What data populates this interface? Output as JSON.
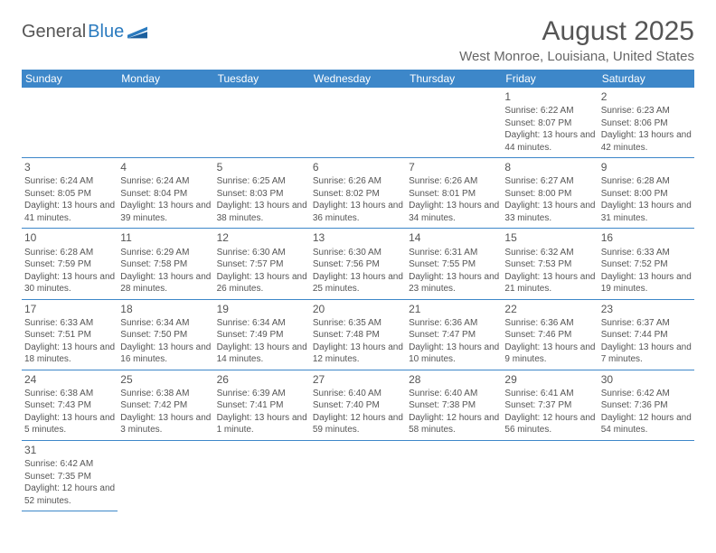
{
  "brand": {
    "part1": "General",
    "part2": "Blue"
  },
  "title": "August 2025",
  "location": "West Monroe, Louisiana, United States",
  "colors": {
    "header_bg": "#3d87c9",
    "header_fg": "#ffffff",
    "rule": "#3d87c9",
    "text": "#555555",
    "brand_accent": "#2b7bbf"
  },
  "weekdays": [
    "Sunday",
    "Monday",
    "Tuesday",
    "Wednesday",
    "Thursday",
    "Friday",
    "Saturday"
  ],
  "first_weekday_index": 5,
  "days": [
    {
      "n": 1,
      "sr": "6:22 AM",
      "ss": "8:07 PM",
      "dl": "13 hours and 44 minutes."
    },
    {
      "n": 2,
      "sr": "6:23 AM",
      "ss": "8:06 PM",
      "dl": "13 hours and 42 minutes."
    },
    {
      "n": 3,
      "sr": "6:24 AM",
      "ss": "8:05 PM",
      "dl": "13 hours and 41 minutes."
    },
    {
      "n": 4,
      "sr": "6:24 AM",
      "ss": "8:04 PM",
      "dl": "13 hours and 39 minutes."
    },
    {
      "n": 5,
      "sr": "6:25 AM",
      "ss": "8:03 PM",
      "dl": "13 hours and 38 minutes."
    },
    {
      "n": 6,
      "sr": "6:26 AM",
      "ss": "8:02 PM",
      "dl": "13 hours and 36 minutes."
    },
    {
      "n": 7,
      "sr": "6:26 AM",
      "ss": "8:01 PM",
      "dl": "13 hours and 34 minutes."
    },
    {
      "n": 8,
      "sr": "6:27 AM",
      "ss": "8:00 PM",
      "dl": "13 hours and 33 minutes."
    },
    {
      "n": 9,
      "sr": "6:28 AM",
      "ss": "8:00 PM",
      "dl": "13 hours and 31 minutes."
    },
    {
      "n": 10,
      "sr": "6:28 AM",
      "ss": "7:59 PM",
      "dl": "13 hours and 30 minutes."
    },
    {
      "n": 11,
      "sr": "6:29 AM",
      "ss": "7:58 PM",
      "dl": "13 hours and 28 minutes."
    },
    {
      "n": 12,
      "sr": "6:30 AM",
      "ss": "7:57 PM",
      "dl": "13 hours and 26 minutes."
    },
    {
      "n": 13,
      "sr": "6:30 AM",
      "ss": "7:56 PM",
      "dl": "13 hours and 25 minutes."
    },
    {
      "n": 14,
      "sr": "6:31 AM",
      "ss": "7:55 PM",
      "dl": "13 hours and 23 minutes."
    },
    {
      "n": 15,
      "sr": "6:32 AM",
      "ss": "7:53 PM",
      "dl": "13 hours and 21 minutes."
    },
    {
      "n": 16,
      "sr": "6:33 AM",
      "ss": "7:52 PM",
      "dl": "13 hours and 19 minutes."
    },
    {
      "n": 17,
      "sr": "6:33 AM",
      "ss": "7:51 PM",
      "dl": "13 hours and 18 minutes."
    },
    {
      "n": 18,
      "sr": "6:34 AM",
      "ss": "7:50 PM",
      "dl": "13 hours and 16 minutes."
    },
    {
      "n": 19,
      "sr": "6:34 AM",
      "ss": "7:49 PM",
      "dl": "13 hours and 14 minutes."
    },
    {
      "n": 20,
      "sr": "6:35 AM",
      "ss": "7:48 PM",
      "dl": "13 hours and 12 minutes."
    },
    {
      "n": 21,
      "sr": "6:36 AM",
      "ss": "7:47 PM",
      "dl": "13 hours and 10 minutes."
    },
    {
      "n": 22,
      "sr": "6:36 AM",
      "ss": "7:46 PM",
      "dl": "13 hours and 9 minutes."
    },
    {
      "n": 23,
      "sr": "6:37 AM",
      "ss": "7:44 PM",
      "dl": "13 hours and 7 minutes."
    },
    {
      "n": 24,
      "sr": "6:38 AM",
      "ss": "7:43 PM",
      "dl": "13 hours and 5 minutes."
    },
    {
      "n": 25,
      "sr": "6:38 AM",
      "ss": "7:42 PM",
      "dl": "13 hours and 3 minutes."
    },
    {
      "n": 26,
      "sr": "6:39 AM",
      "ss": "7:41 PM",
      "dl": "13 hours and 1 minute."
    },
    {
      "n": 27,
      "sr": "6:40 AM",
      "ss": "7:40 PM",
      "dl": "12 hours and 59 minutes."
    },
    {
      "n": 28,
      "sr": "6:40 AM",
      "ss": "7:38 PM",
      "dl": "12 hours and 58 minutes."
    },
    {
      "n": 29,
      "sr": "6:41 AM",
      "ss": "7:37 PM",
      "dl": "12 hours and 56 minutes."
    },
    {
      "n": 30,
      "sr": "6:42 AM",
      "ss": "7:36 PM",
      "dl": "12 hours and 54 minutes."
    },
    {
      "n": 31,
      "sr": "6:42 AM",
      "ss": "7:35 PM",
      "dl": "12 hours and 52 minutes."
    }
  ],
  "labels": {
    "sunrise": "Sunrise:",
    "sunset": "Sunset:",
    "daylight": "Daylight:"
  }
}
